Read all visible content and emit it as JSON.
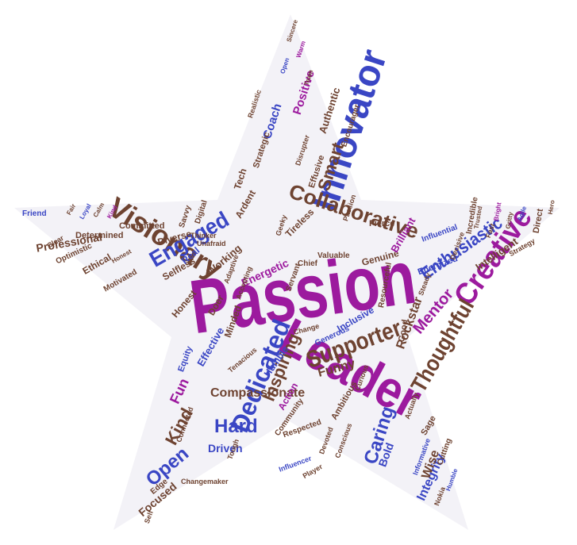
{
  "colors": {
    "purple": "#9c1a9e",
    "blue": "#3a46c4",
    "brown": "#6e4331",
    "star_fill": "#f3f2f7"
  },
  "words": {
    "passion": "Passion",
    "leader": "Leader",
    "innovator": "Innovator",
    "visionary": "Visionary",
    "creative": "Creative",
    "collaborative": "Collaborative",
    "dedicated": "Dedicated",
    "engaged": "Engaged",
    "supporter": "Supporter",
    "thoughtful": "Thoughtful",
    "enthusiastic": "Enthusiastic",
    "caring": "Caring",
    "inspiring": "Inspiring",
    "hard": "Hard",
    "open": "Open",
    "kind": "Kind",
    "smart": "Smart",
    "mentor": "Mentor",
    "compassionate": "Compassionate",
    "integrity": "Integrity",
    "fun": "Fun",
    "funny": "Funny",
    "rockstar": "Rockstar",
    "wise": "Wise",
    "bold": "Bold",
    "driven": "Driven",
    "focused": "Focused",
    "coach": "Coach",
    "positive": "Positive",
    "authentic": "Authentic",
    "energetic": "Energetic",
    "professional": "Professional",
    "tireless": "Tireless",
    "genuine": "Genuine",
    "brilliant": "Brilliant",
    "intelligent": "Intelligent",
    "humble": "Humble",
    "effective": "Effective",
    "honest": "Honest",
    "selfless": "Selfless",
    "ethical": "Ethical",
    "diverse": "Diverse",
    "working": "Working",
    "real": "Real",
    "inclusive": "Inclusive",
    "ardent": "Ardent",
    "tech": "Tech",
    "strategic": "Strategic",
    "effusive": "Effusive",
    "energized": "Energized",
    "fierce": "Fierce",
    "direct": "Direct",
    "incredible": "Incredible",
    "determined": "Determined",
    "committed": "Committed",
    "optimistic": "Optimistic",
    "motivated": "Motivated",
    "friend": "Friend",
    "equity": "Equity",
    "doer": "Doer",
    "minded": "Minded",
    "ambitious": "Ambitious",
    "resourceful": "Resourceful",
    "good": "Good",
    "edge": "Edge",
    "cutting": "Cutting",
    "sage": "Sage",
    "action": "Action",
    "community": "Community",
    "respected": "Respected",
    "encourager": "Encourager",
    "influential": "Influential",
    "chief": "Chief",
    "valuable": "Valuable",
    "servant": "Servant",
    "generous": "Generous",
    "digital": "Digital",
    "savvy": "Savvy",
    "clear": "Clear",
    "thinker": "Thinker",
    "unafraid": "Unafraid",
    "geeky": "Geeky",
    "passion_small": "Passion",
    "disrupter": "Disrupter",
    "realistic": "Realistic",
    "tenacious": "Tenacious",
    "change": "Change",
    "nokia": "Nokia",
    "informative": "Informative",
    "curious": "Curious",
    "actually": "Actually",
    "influencer": "Influencer",
    "changemaker": "Changemaker",
    "tough": "Tough",
    "devoted": "Devoted",
    "conscious": "Conscious",
    "strategy": "Strategy",
    "decisive": "Decisive",
    "accepting": "Accepting",
    "adaptive": "Adaptive",
    "player": "Player",
    "connected": "Connected",
    "steady": "Steady",
    "fast": "Fast",
    "self": "Self",
    "hero": "Hero",
    "agile": "Agile",
    "gritty": "Gritty",
    "bright": "Bright",
    "trusted": "Trusted",
    "fair": "Fair",
    "loyal": "Loyal",
    "calm": "Calm",
    "kind_small": "Kind",
    "sincere": "Sincere",
    "warm": "Warm",
    "open_small": "Open",
    "team": "Team",
    "honest_small": "Honest",
    "humble_small": "Humble"
  }
}
